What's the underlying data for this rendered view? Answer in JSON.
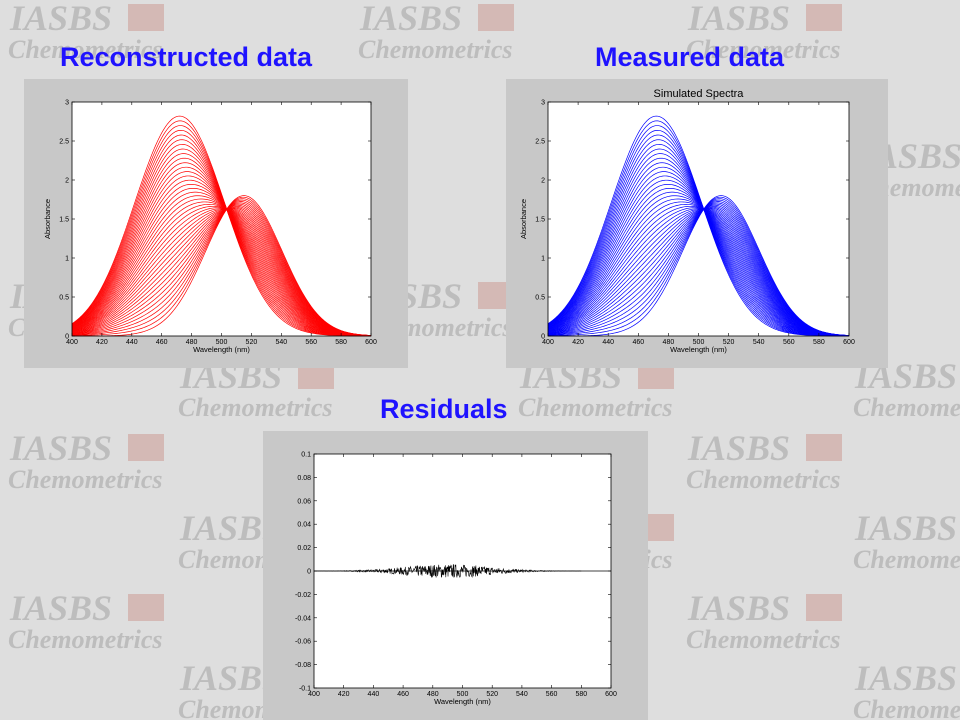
{
  "slide": {
    "titles": {
      "reconstructed": "Reconstructed data",
      "measured": "Measured data",
      "residuals": "Residuals"
    },
    "watermark": {
      "line1": "IASBS",
      "line2": "Chemometrics",
      "text_color": "#bdbdbd",
      "logo_color": "#cc9a94"
    },
    "title_color": "#1f13ff"
  },
  "chart_data": [
    {
      "type": "line",
      "panel": "reconstructed",
      "title": "",
      "xlabel": "Wavelength  (nm)",
      "ylabel": "Absorbance",
      "xlim": [
        400,
        600
      ],
      "ylim": [
        0,
        3
      ],
      "xticks": [
        400,
        420,
        440,
        460,
        480,
        500,
        520,
        540,
        560,
        580,
        600
      ],
      "yticks": [
        0,
        0.5,
        1,
        1.5,
        2,
        2.5,
        3
      ],
      "color": "#ff0000",
      "series_count": 40,
      "species": [
        {
          "peak_wavelength": 472,
          "peak_absorbance": 2.82
        },
        {
          "peak_wavelength": 515,
          "peak_absorbance": 1.8
        }
      ],
      "isosbestic_point": {
        "wavelength": 500,
        "absorbance": 1.63
      }
    },
    {
      "type": "line",
      "panel": "measured",
      "title": "Simulated Spectra",
      "xlabel": "Wavelength  (nm)",
      "ylabel": "Absorbance",
      "xlim": [
        400,
        600
      ],
      "ylim": [
        0,
        3
      ],
      "xticks": [
        400,
        420,
        440,
        460,
        480,
        500,
        520,
        540,
        560,
        580,
        600
      ],
      "yticks": [
        0,
        0.5,
        1,
        1.5,
        2,
        2.5,
        3
      ],
      "color": "#0000ff",
      "series_count": 40,
      "species": [
        {
          "peak_wavelength": 472,
          "peak_absorbance": 2.82
        },
        {
          "peak_wavelength": 515,
          "peak_absorbance": 1.8
        }
      ],
      "isosbestic_point": {
        "wavelength": 500,
        "absorbance": 1.63
      }
    },
    {
      "type": "line",
      "panel": "residuals",
      "title": "",
      "xlabel": "Wavelength  (nm)",
      "ylabel": "",
      "xlim": [
        400,
        600
      ],
      "ylim": [
        -0.1,
        0.1
      ],
      "xticks": [
        400,
        420,
        440,
        460,
        480,
        500,
        520,
        540,
        560,
        580,
        600
      ],
      "yticks": [
        0.1,
        0.08,
        0.06,
        0.04,
        0.02,
        0,
        -0.02,
        -0.04,
        -0.06,
        -0.08,
        -0.1
      ],
      "ytick_labels": [
        "0.1",
        "0.08",
        "0.06",
        "0.04",
        "0.02",
        "0",
        "-0.02",
        "-0.04",
        "-0.06",
        "-0.08",
        "-0.1"
      ],
      "color": "#000000",
      "noise_envelope": {
        "center_wavelength": 490,
        "max_amplitude": 0.012,
        "range": [
          400,
          580
        ]
      }
    }
  ]
}
